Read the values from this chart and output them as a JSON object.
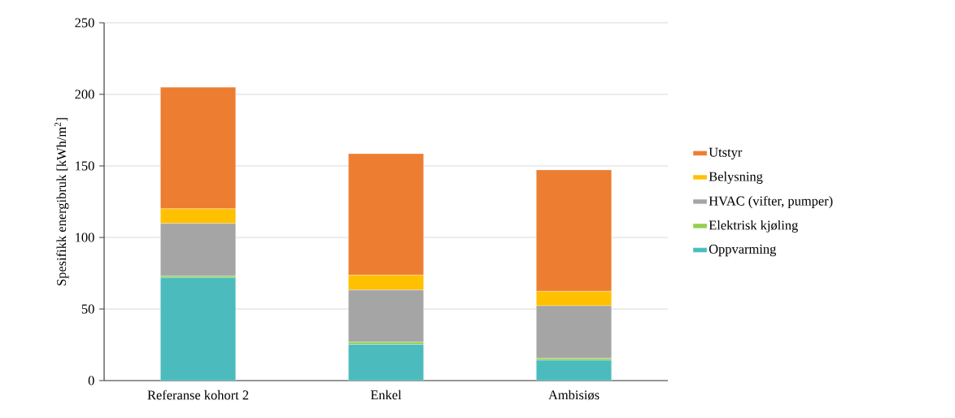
{
  "chart_data": {
    "type": "bar",
    "stacked": true,
    "ylabel": "Spesifikk energibruk [kWh/m$^{2}$]",
    "categories": [
      "Referanse kohort 2",
      "Enkel",
      "Ambisiøs"
    ],
    "series": [
      {
        "name": "Oppvarming",
        "color": "#4bbbbe",
        "values": [
          72,
          25.3,
          14.2
        ]
      },
      {
        "name": "Elektrisk kjøling",
        "color": "#92d050",
        "values": [
          1.1,
          1.5,
          1.3
        ]
      },
      {
        "name": "HVAC (vifter, pumper)",
        "color": "#a5a5a5",
        "values": [
          36.7,
          36.5,
          36.8
        ]
      },
      {
        "name": "Belysning",
        "color": "#ffc000",
        "values": [
          10.2,
          10.4,
          10.1
        ]
      },
      {
        "name": "Utstyr",
        "color": "#ed7d31",
        "values": [
          85,
          84.8,
          84.8
        ]
      }
    ],
    "ylim": [
      0,
      250
    ],
    "yticks": [
      0,
      50,
      100,
      150,
      200,
      250
    ],
    "grid": "y",
    "legend": "right"
  }
}
